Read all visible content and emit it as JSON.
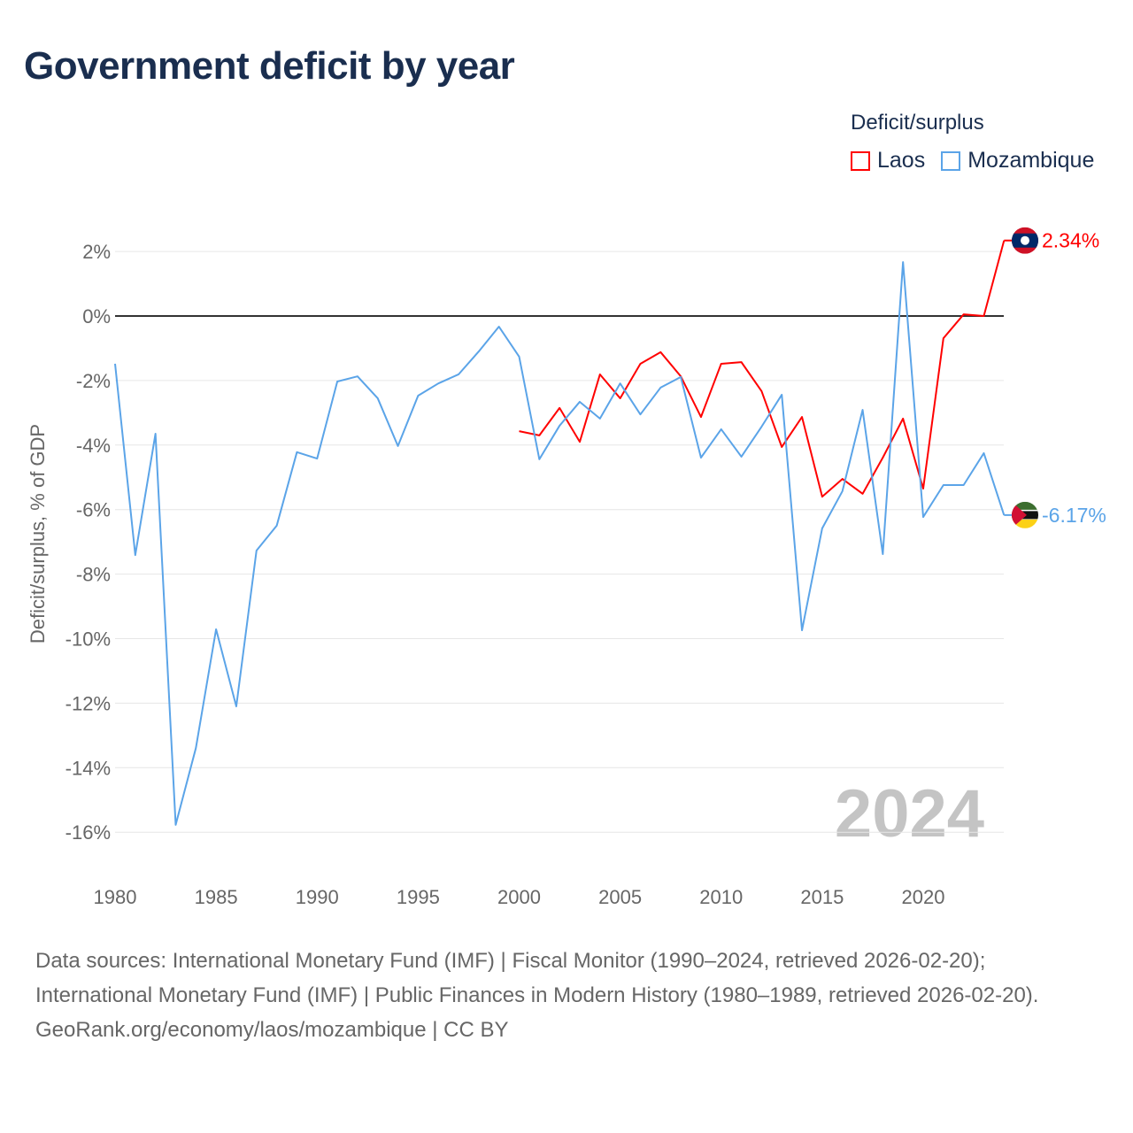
{
  "title": "Government deficit by year",
  "legend": {
    "title": "Deficit/surplus",
    "items": [
      {
        "label": "Laos",
        "color": "#ff0000"
      },
      {
        "label": "Mozambique",
        "color": "#5ba4e8"
      }
    ]
  },
  "watermark_year": "2024",
  "footer": {
    "sources": "Data sources: International Monetary Fund (IMF) | Fiscal Monitor (1990–2024, retrieved 2026-02-20); International Monetary Fund (IMF) | Public Finances in Modern History (1980–1989, retrieved 2026-02-20).",
    "credit": "GeoRank.org/economy/laos/mozambique | CC BY"
  },
  "chart_data": {
    "type": "line",
    "title": "Government deficit by year",
    "xlabel": "",
    "ylabel": "Deficit/surplus, % of GDP",
    "xlim": [
      1980,
      2024
    ],
    "ylim": [
      -16,
      2
    ],
    "x_ticks": [
      "1980",
      "1985",
      "1990",
      "1995",
      "2000",
      "2005",
      "2010",
      "2015",
      "2020"
    ],
    "y_ticks": [
      {
        "v": 2,
        "label": "2%"
      },
      {
        "v": 0,
        "label": "0%"
      },
      {
        "v": -2,
        "label": "-2%"
      },
      {
        "v": -4,
        "label": "-4%"
      },
      {
        "v": -6,
        "label": "-6%"
      },
      {
        "v": -8,
        "label": "-8%"
      },
      {
        "v": -10,
        "label": "-10%"
      },
      {
        "v": -12,
        "label": "-12%"
      },
      {
        "v": -14,
        "label": "-14%"
      },
      {
        "v": -16,
        "label": "-16%"
      }
    ],
    "grid": true,
    "legend_position": "top-right",
    "series": [
      {
        "name": "Laos",
        "color": "#ff0000",
        "start_year": 2000,
        "end_label": "2.34%",
        "values": [
          -3.57,
          -3.7,
          -2.85,
          -3.9,
          -1.81,
          -2.55,
          -1.48,
          -1.12,
          -1.87,
          -3.13,
          -1.48,
          -1.43,
          -2.33,
          -4.06,
          -3.13,
          -5.6,
          -5.05,
          -5.51,
          -4.39,
          -3.18,
          -5.35,
          -0.69,
          0.05,
          0.0,
          2.34
        ]
      },
      {
        "name": "Mozambique",
        "color": "#5ba4e8",
        "start_year": 1980,
        "end_label": "-6.17%",
        "values": [
          -1.48,
          -7.41,
          -3.65,
          -15.77,
          -13.39,
          -9.71,
          -12.1,
          -7.27,
          -6.5,
          -4.22,
          -4.42,
          -2.03,
          -1.87,
          -2.55,
          -4.03,
          -2.47,
          -2.09,
          -1.81,
          -1.1,
          -0.33,
          -1.26,
          -4.44,
          -3.4,
          -2.66,
          -3.18,
          -2.09,
          -3.05,
          -2.22,
          -1.89,
          -4.39,
          -3.51,
          -4.36,
          -3.43,
          -2.44,
          -9.74,
          -6.58,
          -5.43,
          -2.91,
          -7.38,
          1.67,
          -6.23,
          -5.24,
          -5.24,
          -4.25,
          -6.17
        ]
      }
    ]
  }
}
